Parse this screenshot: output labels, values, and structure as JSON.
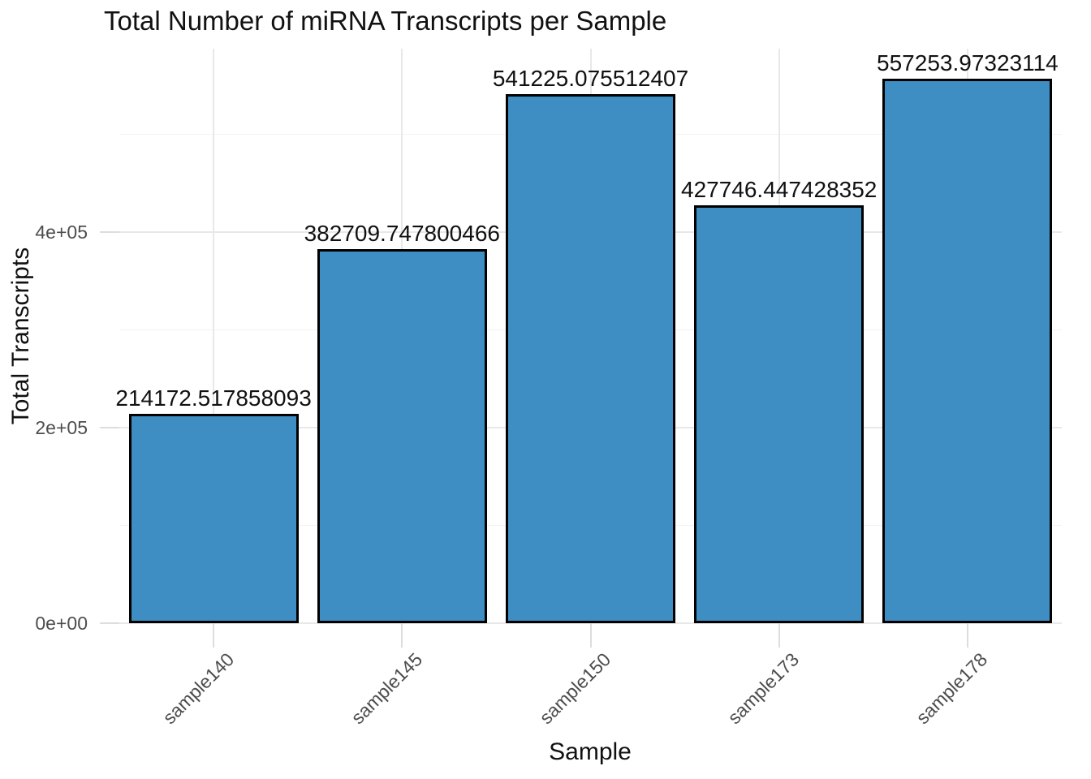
{
  "title": "Total Number of miRNA Transcripts per Sample",
  "chart_data": {
    "type": "bar",
    "title": "Total Number of miRNA Transcripts per Sample",
    "xlabel": "Sample",
    "ylabel": "Total Transcripts",
    "categories": [
      "sample140",
      "sample145",
      "sample150",
      "sample173",
      "sample178"
    ],
    "values": [
      214172.517858093,
      382709.747800466,
      541225.075512407,
      427746.447428352,
      557253.97323114
    ],
    "value_labels": [
      "214172.517858093",
      "382709.747800466",
      "541225.075512407",
      "427746.447428352",
      "557253.97323114"
    ],
    "y_ticks": [
      {
        "value": 0,
        "label": "0e+00"
      },
      {
        "value": 200000,
        "label": "2e+05"
      },
      {
        "value": 400000,
        "label": "4e+05"
      }
    ],
    "y_minor_breaks": [
      100000,
      300000,
      500000
    ],
    "ylim": [
      0,
      587551
    ],
    "legend_position": "none",
    "grid": "horizontal-major-minor, vertical-major-at-categories",
    "colors": {
      "bar_fill": "#3E8EC4",
      "bar_border": "#000000",
      "grid_major": "#E8E8E8",
      "grid_minor": "#F3F3F3",
      "tick_mark": "#DDDDDD",
      "axis_text": "#4D4D4D",
      "title_text": "#111111",
      "background": "#FFFFFF"
    }
  }
}
